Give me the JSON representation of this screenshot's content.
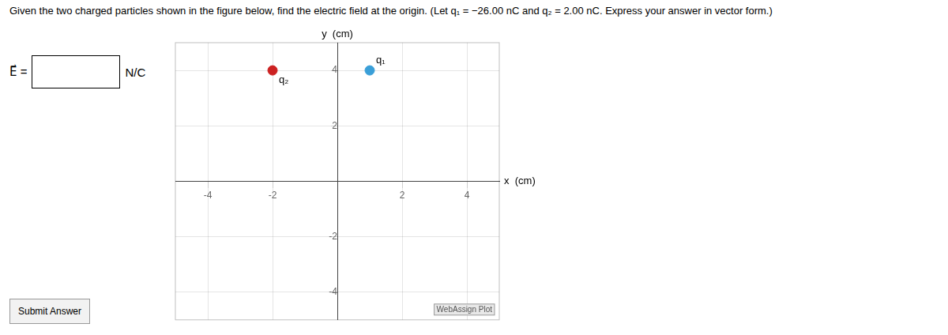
{
  "chart_data": {
    "type": "scatter",
    "title": "Given the two charged particles shown in the figure below, find the electric field at the origin. (Let q₁ = −26.00 nC and q₂ = 2.00 nC. Express your answer in vector form.)",
    "xlabel": "x  (cm)",
    "ylabel": "y  (cm)",
    "xlim": [
      -5,
      5
    ],
    "ylim": [
      -5,
      5
    ],
    "xticks": [
      -4,
      -2,
      2,
      4
    ],
    "yticks": [
      -4,
      -2,
      2,
      4
    ],
    "grid": true,
    "series": [
      {
        "name": "q₁",
        "color": "#3a9fd8",
        "x": [
          1
        ],
        "values": [
          4
        ]
      },
      {
        "name": "q₂",
        "color": "#cc2222",
        "x": [
          -2
        ],
        "values": [
          4
        ]
      }
    ],
    "annotations": [
      "E⃗ =",
      "N/C",
      "WebAssign Plot",
      "Submit Answer"
    ]
  }
}
